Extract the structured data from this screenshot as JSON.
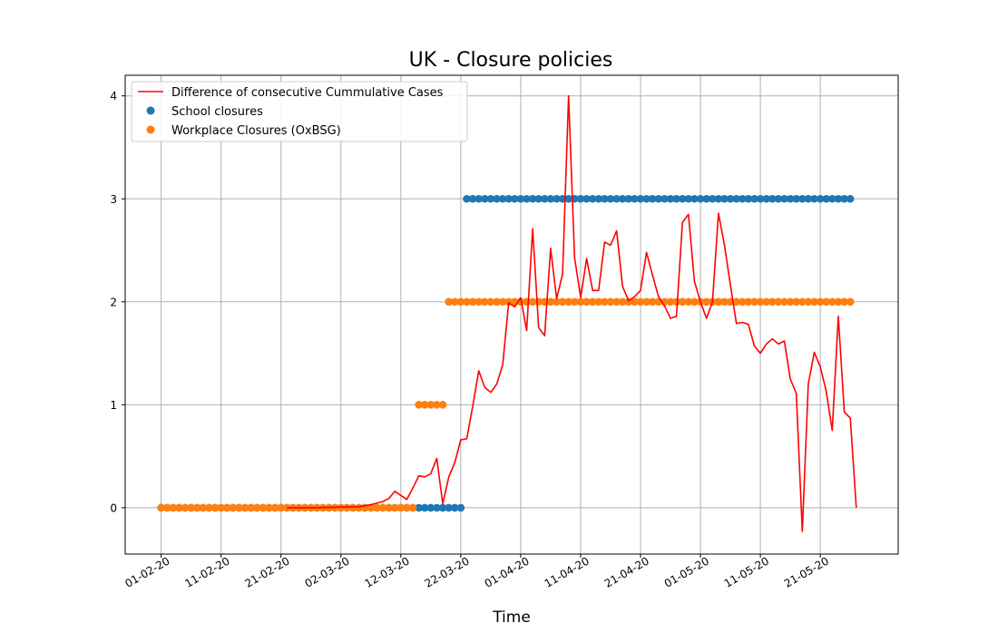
{
  "chart_data": {
    "type": "line",
    "title": "UK - Closure policies",
    "xlabel": "Time",
    "ylabel": "",
    "x_tick_labels": [
      "01-02-20",
      "11-02-20",
      "21-02-20",
      "02-03-20",
      "12-03-20",
      "22-03-20",
      "01-04-20",
      "11-04-20",
      "21-04-20",
      "01-05-20",
      "11-05-20",
      "21-05-20"
    ],
    "y_ticks": [
      0,
      1,
      2,
      3,
      4
    ],
    "xlim": [
      "2020-01-26",
      "2020-06-03"
    ],
    "ylim": [
      -0.45,
      4.2
    ],
    "grid": true,
    "legend_position": "top-left",
    "series": [
      {
        "name": "Difference of consecutive Cummulative Cases",
        "kind": "line",
        "color": "#ff0000",
        "x": [
          "2020-02-22",
          "2020-02-26",
          "2020-03-01",
          "2020-03-05",
          "2020-03-07",
          "2020-03-09",
          "2020-03-10",
          "2020-03-11",
          "2020-03-12",
          "2020-03-13",
          "2020-03-14",
          "2020-03-15",
          "2020-03-16",
          "2020-03-17",
          "2020-03-18",
          "2020-03-19",
          "2020-03-20",
          "2020-03-21",
          "2020-03-22",
          "2020-03-23",
          "2020-03-24",
          "2020-03-25",
          "2020-03-26",
          "2020-03-27",
          "2020-03-28",
          "2020-03-29",
          "2020-03-30",
          "2020-03-31",
          "2020-04-01",
          "2020-04-02",
          "2020-04-03",
          "2020-04-04",
          "2020-04-05",
          "2020-04-06",
          "2020-04-07",
          "2020-04-08",
          "2020-04-09",
          "2020-04-10",
          "2020-04-11",
          "2020-04-12",
          "2020-04-13",
          "2020-04-14",
          "2020-04-15",
          "2020-04-16",
          "2020-04-17",
          "2020-04-18",
          "2020-04-19",
          "2020-04-20",
          "2020-04-21",
          "2020-04-22",
          "2020-04-23",
          "2020-04-24",
          "2020-04-25",
          "2020-04-26",
          "2020-04-27",
          "2020-04-28",
          "2020-04-29",
          "2020-04-30",
          "2020-05-01",
          "2020-05-02",
          "2020-05-03",
          "2020-05-04",
          "2020-05-05",
          "2020-05-06",
          "2020-05-07",
          "2020-05-08",
          "2020-05-09",
          "2020-05-10",
          "2020-05-11",
          "2020-05-12",
          "2020-05-13",
          "2020-05-14",
          "2020-05-15",
          "2020-05-16",
          "2020-05-17",
          "2020-05-18",
          "2020-05-19",
          "2020-05-20",
          "2020-05-21",
          "2020-05-22",
          "2020-05-23",
          "2020-05-24",
          "2020-05-25",
          "2020-05-26",
          "2020-05-27"
        ],
        "y": [
          0,
          0,
          0.005,
          0.01,
          0.03,
          0.06,
          0.09,
          0.16,
          0.12,
          0.08,
          0.19,
          0.31,
          0.3,
          0.33,
          0.48,
          0.04,
          0.3,
          0.44,
          0.66,
          0.67,
          0.99,
          1.33,
          1.17,
          1.12,
          1.2,
          1.39,
          1.99,
          1.95,
          2.04,
          1.72,
          2.71,
          1.75,
          1.67,
          2.52,
          2.03,
          2.27,
          4.0,
          2.43,
          2.04,
          2.42,
          2.11,
          2.11,
          2.58,
          2.55,
          2.69,
          2.15,
          2.01,
          2.05,
          2.11,
          2.48,
          2.26,
          2.05,
          1.96,
          1.84,
          1.86,
          2.77,
          2.85,
          2.2,
          2.0,
          1.84,
          2.0,
          2.86,
          2.55,
          2.16,
          1.79,
          1.8,
          1.78,
          1.57,
          1.5,
          1.59,
          1.64,
          1.59,
          1.62,
          1.25,
          1.11,
          -0.23,
          1.2,
          1.51,
          1.37,
          1.13,
          0.75,
          1.86,
          0.93,
          0.87,
          0.0
        ]
      },
      {
        "name": "School closures",
        "kind": "scatter",
        "color": "#1f77b4",
        "segments": [
          {
            "from": "2020-02-01",
            "to": "2020-03-22",
            "value": 0
          },
          {
            "from": "2020-03-23",
            "to": "2020-05-26",
            "value": 3
          }
        ]
      },
      {
        "name": "Workplace Closures (OxBSG)",
        "kind": "scatter",
        "color": "#ff7f0e",
        "segments": [
          {
            "from": "2020-02-01",
            "to": "2020-03-14",
            "value": 0
          },
          {
            "from": "2020-03-15",
            "to": "2020-03-19",
            "value": 1
          },
          {
            "from": "2020-03-20",
            "to": "2020-05-26",
            "value": 2
          }
        ]
      }
    ]
  }
}
